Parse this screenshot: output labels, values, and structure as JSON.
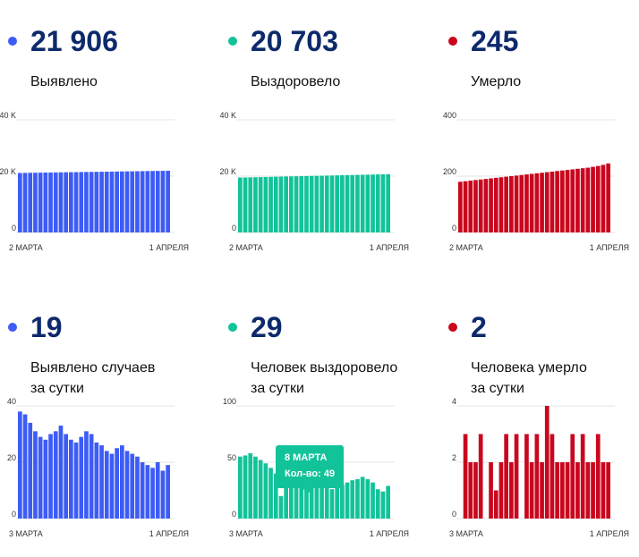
{
  "colors": {
    "blue": "#3d5cf5",
    "green": "#12c39a",
    "red": "#c9061d"
  },
  "panels": [
    {
      "count": "21 906",
      "label_lines": [
        "Выявлено"
      ]
    },
    {
      "count": "20 703",
      "label_lines": [
        "Выздоровело"
      ]
    },
    {
      "count": "245",
      "label_lines": [
        "Умерло"
      ]
    },
    {
      "count": "19",
      "label_lines": [
        "Выявлено случаев",
        "за сутки"
      ]
    },
    {
      "count": "29",
      "label_lines": [
        "Человек выздоровело",
        "за сутки"
      ]
    },
    {
      "count": "2",
      "label_lines": [
        "Человека умерло",
        "за сутки"
      ]
    }
  ],
  "tooltip": {
    "date": "8 МАРТА",
    "value_text": "Кол-во: 49"
  },
  "chart_data": [
    {
      "type": "bar",
      "color": "blue",
      "x_labels": [
        "2 МАРТА",
        "1 АПРЕЛЯ"
      ],
      "y_ticks": [
        "0",
        "20 K",
        "40 K"
      ],
      "ylim": [
        0,
        40000
      ],
      "values": [
        21124,
        21151,
        21178,
        21205,
        21232,
        21259,
        21286,
        21313,
        21340,
        21367,
        21394,
        21421,
        21448,
        21475,
        21502,
        21529,
        21556,
        21583,
        21610,
        21637,
        21664,
        21691,
        21718,
        21745,
        21772,
        21799,
        21826,
        21853,
        21880,
        21906
      ]
    },
    {
      "type": "bar",
      "color": "green",
      "x_labels": [
        "2 МАРТА",
        "1 АПРЕЛЯ"
      ],
      "y_ticks": [
        "0",
        "20 K",
        "40 K"
      ],
      "ylim": [
        0,
        40000
      ],
      "values": [
        19500,
        19541,
        19582,
        19623,
        19664,
        19705,
        19746,
        19787,
        19828,
        19869,
        19910,
        19951,
        19992,
        20033,
        20074,
        20115,
        20156,
        20197,
        20238,
        20279,
        20320,
        20361,
        20402,
        20443,
        20484,
        20525,
        20566,
        20607,
        20648,
        20703
      ]
    },
    {
      "type": "bar",
      "color": "red",
      "x_labels": [
        "2 МАРТА",
        "1 АПРЕЛЯ"
      ],
      "y_ticks": [
        "0",
        "200",
        "400"
      ],
      "ylim": [
        0,
        400
      ],
      "values": [
        180,
        182,
        184,
        186,
        188,
        190,
        192,
        194,
        196,
        198,
        200,
        202,
        204,
        206,
        208,
        210,
        212,
        214,
        216,
        218,
        220,
        222,
        224,
        226,
        228,
        230,
        233,
        236,
        240,
        245
      ]
    },
    {
      "type": "bar",
      "color": "blue",
      "x_labels": [
        "3 МАРТА",
        "1 АПРЕЛЯ"
      ],
      "y_ticks": [
        "0",
        "20",
        "40"
      ],
      "ylim": [
        0,
        40
      ],
      "values": [
        38,
        37,
        34,
        31,
        29,
        28,
        30,
        31,
        33,
        30,
        28,
        27,
        29,
        31,
        30,
        27,
        26,
        24,
        23,
        25,
        26,
        24,
        23,
        22,
        20,
        19,
        18,
        20,
        17,
        19
      ]
    },
    {
      "type": "bar",
      "color": "green",
      "x_labels": [
        "3 МАРТА",
        "1 АПРЕЛЯ"
      ],
      "y_ticks": [
        "0",
        "50",
        "100"
      ],
      "ylim": [
        0,
        100
      ],
      "values": [
        55,
        56,
        58,
        55,
        52,
        49,
        45,
        40,
        20,
        38,
        36,
        34,
        35,
        33,
        32,
        30,
        28,
        27,
        26,
        28,
        30,
        32,
        34,
        35,
        37,
        35,
        32,
        26,
        24,
        29
      ]
    },
    {
      "type": "bar",
      "color": "red",
      "x_labels": [
        "3 МАРТА",
        "1 АПРЕЛЯ"
      ],
      "y_ticks": [
        "0",
        "2",
        "4"
      ],
      "ylim": [
        0,
        4
      ],
      "values": [
        0,
        3,
        2,
        2,
        3,
        0,
        2,
        1,
        2,
        3,
        2,
        3,
        0,
        3,
        2,
        3,
        2,
        4,
        3,
        2,
        2,
        2,
        3,
        2,
        3,
        2,
        2,
        3,
        2,
        2
      ]
    }
  ]
}
